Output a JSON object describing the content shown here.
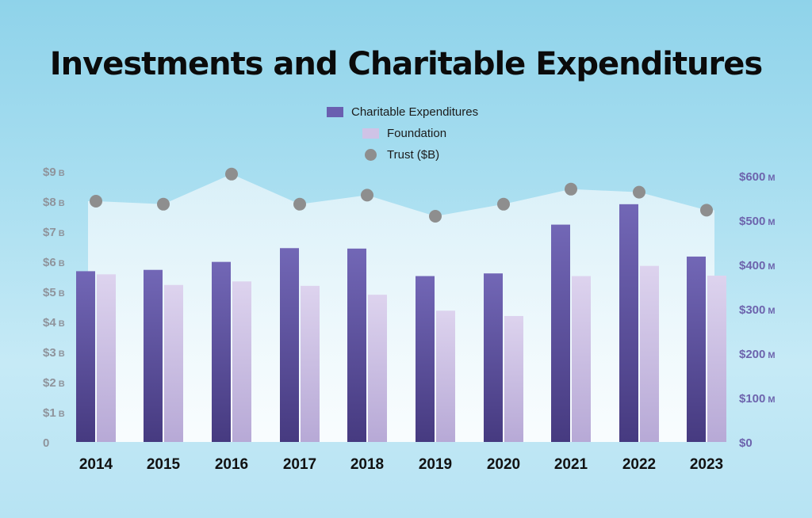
{
  "title": "Investments and Charitable Expenditures",
  "legend": [
    {
      "label": "Charitable Expenditures",
      "color": "#6a5fb0",
      "icon": "bar-swatch"
    },
    {
      "label": "Foundation",
      "color": "#cfc3e6",
      "icon": "bar-swatch"
    },
    {
      "label": "Trust ($B)",
      "color": "#8e8e8e",
      "icon": "circle-marker"
    }
  ],
  "chart_data": {
    "type": "bar",
    "categories": [
      "2014",
      "2015",
      "2016",
      "2017",
      "2018",
      "2019",
      "2020",
      "2021",
      "2022",
      "2023"
    ],
    "series": [
      {
        "name": "Charitable Expenditures",
        "axis": "right",
        "unit": "$M",
        "color": "#6a5fb0",
        "values": [
          385,
          388,
          406,
          437,
          436,
          374,
          380,
          490,
          536,
          418
        ]
      },
      {
        "name": "Foundation",
        "axis": "right",
        "unit": "$M",
        "color": "#cfc3e6",
        "values": [
          378,
          354,
          362,
          352,
          332,
          296,
          284,
          374,
          397,
          375
        ]
      },
      {
        "name": "Trust ($B)",
        "type": "scatter",
        "axis": "left",
        "unit": "$B",
        "color": "#8e8e8e",
        "values": [
          8.0,
          7.9,
          8.9,
          7.9,
          8.2,
          7.5,
          7.9,
          8.4,
          8.3,
          7.7
        ]
      }
    ],
    "left_axis": {
      "ylim": [
        0,
        9
      ],
      "ticks": [
        "0",
        "$1",
        "$2",
        "$3",
        "$4",
        "$5",
        "$6",
        "$7",
        "$8",
        "$9"
      ],
      "suffix": "B"
    },
    "right_axis": {
      "ylim": [
        0,
        600
      ],
      "ticks": [
        "$0",
        "$100",
        "$200",
        "$300",
        "$400",
        "$500",
        "$600"
      ],
      "suffix": "M"
    },
    "grid": false,
    "legend_position": "top-center"
  }
}
